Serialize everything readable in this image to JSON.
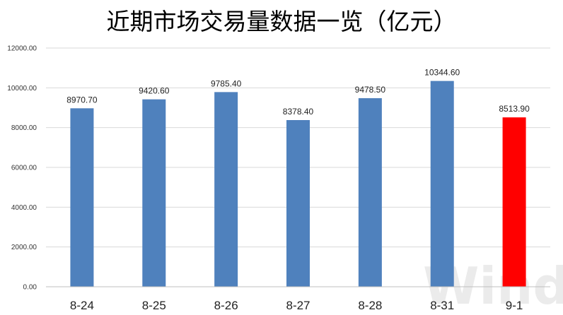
{
  "chart_data": {
    "type": "bar",
    "title": "近期市场交易量数据一览（亿元）",
    "categories": [
      "8-24",
      "8-25",
      "8-26",
      "8-27",
      "8-28",
      "8-31",
      "9-1"
    ],
    "values": [
      8970.7,
      9420.6,
      9785.4,
      8378.4,
      9478.5,
      10344.6,
      8513.9
    ],
    "value_labels": [
      "8970.70",
      "9420.60",
      "9785.40",
      "8378.40",
      "9478.50",
      "10344.60",
      "8513.90"
    ],
    "yticks": [
      "0.00",
      "2000.00",
      "4000.00",
      "6000.00",
      "8000.00",
      "10000.00",
      "12000.00"
    ],
    "ylim": [
      0,
      12000
    ],
    "xlabel": "",
    "ylabel": "",
    "grid": true,
    "colors": {
      "default_bar": "#4f81bd",
      "highlight_bar": "#ff0000"
    },
    "highlight_index": 6,
    "watermark": "Wind"
  }
}
